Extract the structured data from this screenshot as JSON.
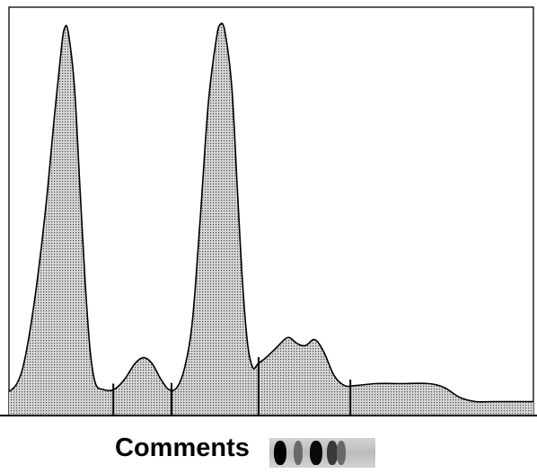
{
  "chart_data": {
    "type": "area",
    "title": "",
    "xlabel": "",
    "ylabel": "",
    "xlim": [
      0,
      100
    ],
    "ylim": [
      0,
      100
    ],
    "grid": false,
    "fill_pattern": "dotted",
    "series": [
      {
        "values": [
          [
            0,
            6
          ],
          [
            1.5,
            8
          ],
          [
            3,
            14
          ],
          [
            5,
            30
          ],
          [
            7,
            52
          ],
          [
            8.6,
            74
          ],
          [
            10,
            92
          ],
          [
            10.6,
            97
          ],
          [
            11.3,
            96
          ],
          [
            12.5,
            82
          ],
          [
            13.5,
            58
          ],
          [
            14.5,
            34
          ],
          [
            15.5,
            16
          ],
          [
            16.5,
            8
          ],
          [
            18,
            6.5
          ],
          [
            20,
            6.5
          ],
          [
            22,
            9
          ],
          [
            24,
            13
          ],
          [
            25.7,
            14.5
          ],
          [
            27.3,
            13
          ],
          [
            29,
            9
          ],
          [
            30.5,
            6.5
          ],
          [
            32,
            7
          ],
          [
            33.5,
            12
          ],
          [
            35,
            24
          ],
          [
            36.5,
            50
          ],
          [
            38,
            78
          ],
          [
            39.5,
            94
          ],
          [
            40.3,
            98
          ],
          [
            41.2,
            96
          ],
          [
            42.5,
            82
          ],
          [
            43.5,
            58
          ],
          [
            44.5,
            34
          ],
          [
            45.5,
            18
          ],
          [
            46.5,
            12
          ],
          [
            47.5,
            13
          ],
          [
            49,
            14.5
          ],
          [
            51,
            17
          ],
          [
            52.5,
            19
          ],
          [
            53.5,
            19.5
          ],
          [
            55,
            18
          ],
          [
            56.5,
            17.5
          ],
          [
            58.3,
            19
          ],
          [
            60,
            16
          ],
          [
            62,
            10
          ],
          [
            64,
            7.5
          ],
          [
            66,
            7.5
          ],
          [
            70,
            8
          ],
          [
            75,
            8
          ],
          [
            80,
            8
          ],
          [
            83,
            7
          ],
          [
            86,
            4.5
          ],
          [
            89,
            3.5
          ],
          [
            92,
            3.5
          ],
          [
            96,
            3.5
          ],
          [
            100,
            3.5
          ]
        ]
      }
    ],
    "fraction_dividers_x": [
      19.9,
      31,
      47.6,
      65.1
    ],
    "curve_color": "#000000",
    "fill_color": "#d0d0d0",
    "strip": {
      "bands": [
        {
          "position": 0.1,
          "darkness": 1.0
        },
        {
          "position": 0.27,
          "darkness": 0.45
        },
        {
          "position": 0.44,
          "darkness": 0.95
        },
        {
          "position": 0.59,
          "darkness": 0.7
        },
        {
          "position": 0.68,
          "darkness": 0.45
        }
      ]
    }
  },
  "footer": {
    "comments_label": "Comments"
  }
}
